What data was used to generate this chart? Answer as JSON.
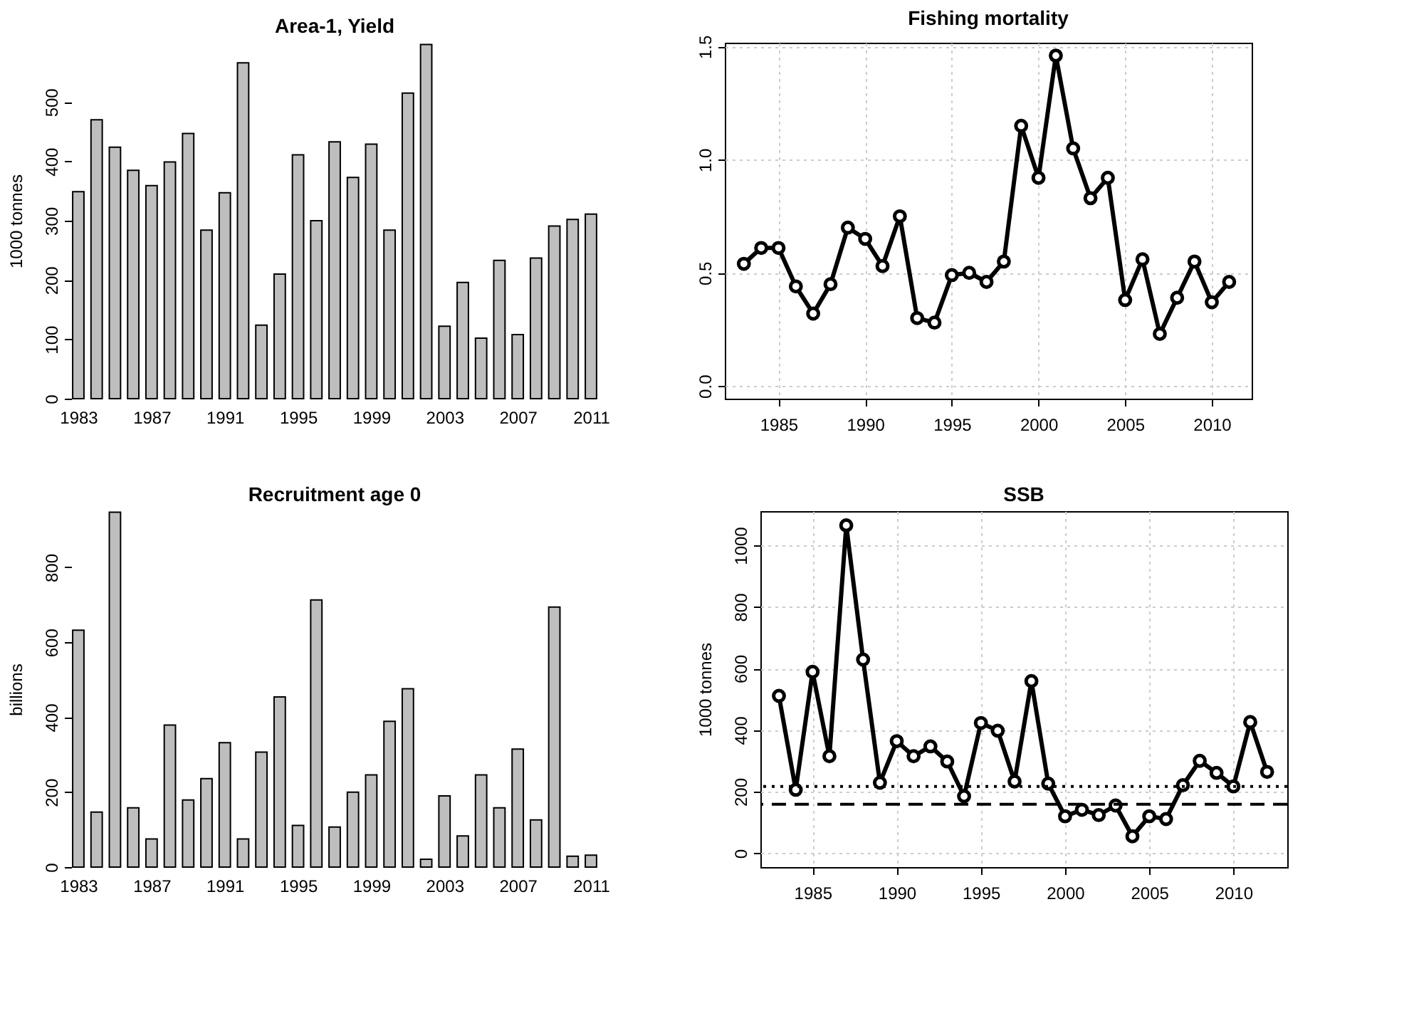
{
  "chart_data": [
    {
      "type": "bar",
      "title": "Area-1,  Yield",
      "ylabel": "1000 tonnes",
      "color": "#bebebe",
      "x": [
        1983,
        1984,
        1985,
        1986,
        1987,
        1988,
        1989,
        1990,
        1991,
        1992,
        1993,
        1994,
        1995,
        1996,
        1997,
        1998,
        1999,
        2000,
        2001,
        2002,
        2003,
        2004,
        2005,
        2006,
        2007,
        2008,
        2009,
        2010,
        2011
      ],
      "values": [
        349,
        470,
        424,
        385,
        359,
        399,
        447,
        284,
        347,
        566,
        124,
        210,
        411,
        300,
        433,
        373,
        429,
        284,
        515,
        597,
        122,
        196,
        102,
        233,
        108,
        237,
        291,
        302,
        311
      ],
      "xlim": [
        1983,
        2011
      ],
      "xticks": [
        1983,
        1987,
        1991,
        1995,
        1999,
        2003,
        2007,
        2011
      ],
      "ylim": [
        0,
        600
      ],
      "yticks": [
        0,
        100,
        200,
        300,
        400,
        500
      ],
      "grid": false
    },
    {
      "type": "line",
      "title": "Fishing mortality",
      "color": "#000000",
      "marker": "circle",
      "line_style": "solid",
      "grid": true,
      "x": [
        1983,
        1984,
        1985,
        1986,
        1987,
        1988,
        1989,
        1990,
        1991,
        1992,
        1993,
        1994,
        1995,
        1996,
        1997,
        1998,
        1999,
        2000,
        2001,
        2002,
        2003,
        2004,
        2005,
        2006,
        2007,
        2008,
        2009,
        2010,
        2011
      ],
      "values": [
        0.54,
        0.61,
        0.61,
        0.44,
        0.32,
        0.45,
        0.7,
        0.65,
        0.53,
        0.75,
        0.3,
        0.28,
        0.49,
        0.5,
        0.46,
        0.55,
        1.15,
        0.92,
        1.46,
        1.05,
        0.83,
        0.92,
        0.38,
        0.56,
        0.23,
        0.39,
        0.55,
        0.37,
        0.46
      ],
      "xlim": [
        1981.9,
        2012.3
      ],
      "xticks": [
        1985,
        1990,
        1995,
        2000,
        2005,
        2010
      ],
      "ylim": [
        -0.056,
        1.517
      ],
      "yticks": [
        {
          "value": 0,
          "label": "0.0"
        },
        0.5,
        {
          "value": 1,
          "label": "1.0"
        },
        1.5
      ]
    },
    {
      "type": "bar",
      "title": "Recruitment age 0",
      "ylabel": "billions",
      "color": "#bebebe",
      "x": [
        1983,
        1984,
        1985,
        1986,
        1987,
        1988,
        1989,
        1990,
        1991,
        1992,
        1993,
        1994,
        1995,
        1996,
        1997,
        1998,
        1999,
        2000,
        2001,
        2002,
        2003,
        2004,
        2005,
        2006,
        2007,
        2008,
        2009,
        2010,
        2011
      ],
      "values": [
        632,
        147,
        947,
        158,
        75,
        379,
        179,
        236,
        332,
        75,
        307,
        454,
        111,
        713,
        107,
        200,
        246,
        389,
        476,
        21,
        190,
        83,
        246,
        158,
        315,
        126,
        694,
        29,
        32
      ],
      "xlim": [
        1983,
        2011
      ],
      "xticks": [
        1983,
        1987,
        1991,
        1995,
        1999,
        2003,
        2007,
        2011
      ],
      "ylim": [
        0,
        950
      ],
      "yticks": [
        0,
        200,
        400,
        600,
        800
      ],
      "grid": false
    },
    {
      "type": "line",
      "title": "SSB",
      "ylabel": "1000 tonnes",
      "color": "#000000",
      "marker": "circle",
      "line_style": "solid",
      "grid": true,
      "x": [
        1983,
        1984,
        1985,
        1986,
        1987,
        1988,
        1989,
        1990,
        1991,
        1992,
        1993,
        1994,
        1995,
        1996,
        1997,
        1998,
        1999,
        2000,
        2001,
        2002,
        2003,
        2004,
        2005,
        2006,
        2007,
        2008,
        2009,
        2010,
        2011,
        2012
      ],
      "values": [
        511,
        206,
        589,
        315,
        1065,
        629,
        229,
        364,
        315,
        347,
        298,
        185,
        423,
        398,
        233,
        559,
        226,
        120,
        141,
        124,
        155,
        55,
        120,
        111,
        221,
        300,
        261,
        217,
        426,
        264
      ],
      "xlim": [
        1981.9,
        2013.2
      ],
      "xticks": [
        1985,
        1990,
        1995,
        2000,
        2005,
        2010
      ],
      "ylim": [
        -45,
        1111
      ],
      "yticks": [
        0,
        200,
        400,
        600,
        800,
        {
          "value": 1000,
          "label": "1000"
        }
      ],
      "ref_lines": [
        {
          "axis": "y",
          "value": 217,
          "color": "#000000",
          "line_style": "dotted"
        },
        {
          "axis": "y",
          "value": 159,
          "color": "#000000",
          "line_style": "dashed"
        }
      ]
    }
  ]
}
